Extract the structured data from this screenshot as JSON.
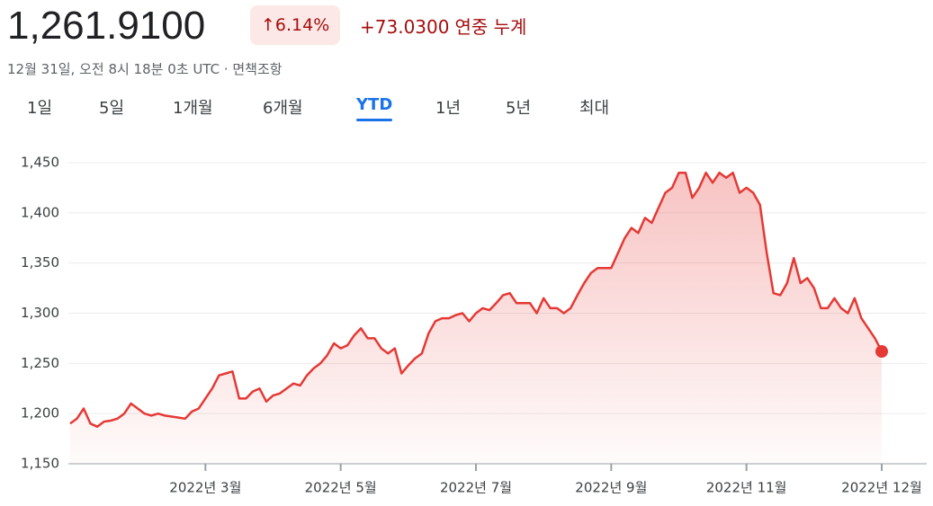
{
  "header": {
    "price": "1,261.9100",
    "change_pct": "6.14%",
    "change_abs": "+73.0300",
    "period": "연중 누계",
    "timestamp": "12월 31일, 오전 8시 18분 0초 UTC",
    "disclaimer": "면책조항"
  },
  "tabs": [
    "1일",
    "5일",
    "1개월",
    "6개월",
    "YTD",
    "1년",
    "5년",
    "최대"
  ],
  "active_tab": 4,
  "chart_data": {
    "type": "line",
    "color": "#e53935",
    "values": [
      1190,
      1195,
      1205,
      1190,
      1187,
      1192,
      1193,
      1195,
      1200,
      1210,
      1205,
      1200,
      1198,
      1200,
      1198,
      1197,
      1196,
      1195,
      1202,
      1205,
      1215,
      1225,
      1238,
      1240,
      1242,
      1215,
      1215,
      1222,
      1225,
      1212,
      1218,
      1220,
      1225,
      1230,
      1228,
      1238,
      1245,
      1250,
      1258,
      1270,
      1265,
      1268,
      1278,
      1285,
      1275,
      1275,
      1265,
      1260,
      1265,
      1240,
      1248,
      1255,
      1260,
      1280,
      1292,
      1295,
      1295,
      1298,
      1300,
      1292,
      1300,
      1305,
      1303,
      1310,
      1318,
      1320,
      1310,
      1310,
      1310,
      1300,
      1315,
      1305,
      1305,
      1300,
      1305,
      1318,
      1330,
      1340,
      1345,
      1345,
      1345,
      1360,
      1375,
      1385,
      1380,
      1395,
      1390,
      1405,
      1420,
      1425,
      1440,
      1440,
      1415,
      1425,
      1440,
      1430,
      1440,
      1435,
      1440,
      1420,
      1425,
      1420,
      1408,
      1360,
      1320,
      1318,
      1330,
      1355,
      1330,
      1335,
      1325,
      1305,
      1305,
      1315,
      1305,
      1300,
      1315,
      1295,
      1285,
      1275,
      1261.91
    ],
    "xlim": [
      0,
      120
    ],
    "xticks": [
      {
        "value": 20,
        "label": "2022년 3월"
      },
      {
        "value": 40,
        "label": "2022년 5월"
      },
      {
        "value": 60,
        "label": "2022년 7월"
      },
      {
        "value": 80,
        "label": "2022년 9월"
      },
      {
        "value": 100,
        "label": "2022년 11월"
      },
      {
        "value": 120,
        "label": "2022년 12월"
      }
    ],
    "ylim": [
      1150,
      1450
    ],
    "yticks": [
      {
        "value": 1150,
        "label": "1,150"
      },
      {
        "value": 1200,
        "label": "1,200"
      },
      {
        "value": 1250,
        "label": "1,250"
      },
      {
        "value": 1300,
        "label": "1,300"
      },
      {
        "value": 1350,
        "label": "1,350"
      },
      {
        "value": 1400,
        "label": "1,400"
      },
      {
        "value": 1450,
        "label": "1,450"
      }
    ],
    "grid": true
  }
}
